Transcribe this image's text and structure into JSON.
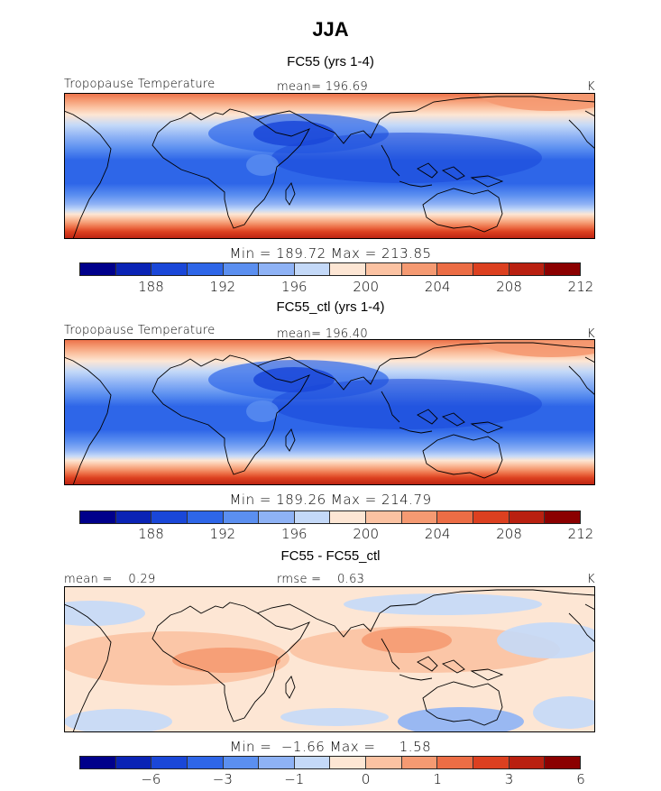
{
  "figure": {
    "title": "JJA"
  },
  "panels": [
    {
      "title": "FC55 (yrs 1-4)",
      "left_label": "Tropopause Temperature",
      "center_label": "mean= 196.69",
      "right_label": "K",
      "stats": "Min = 189.72 Max = 213.85"
    },
    {
      "title": "FC55_ctl (yrs 1-4)",
      "left_label": "Tropopause Temperature",
      "center_label": "mean= 196.40",
      "right_label": "K",
      "stats": "Min = 189.26 Max = 214.79"
    },
    {
      "title": "FC55 - FC55_ctl",
      "left_label": "mean =    0.29",
      "center_label": "rmse =    0.63",
      "right_label": "K",
      "stats": "Min =  −1.66 Max =     1.58"
    }
  ],
  "colorbars": [
    {
      "colors": [
        "#00008b",
        "#0a23b5",
        "#1a47d8",
        "#2e66e8",
        "#5b8ff0",
        "#8eb2f5",
        "#c4d9f8",
        "#fde6d4",
        "#fbc2a2",
        "#f59a72",
        "#ec6d45",
        "#dc4020",
        "#b92010",
        "#8b0000"
      ],
      "ticks": [
        "188",
        "192",
        "196",
        "200",
        "204",
        "208",
        "212"
      ]
    },
    {
      "colors": [
        "#00008b",
        "#0a23b5",
        "#1a47d8",
        "#2e66e8",
        "#5b8ff0",
        "#8eb2f5",
        "#c4d9f8",
        "#fde6d4",
        "#fbc2a2",
        "#f59a72",
        "#ec6d45",
        "#dc4020",
        "#b92010",
        "#8b0000"
      ],
      "ticks": [
        "188",
        "192",
        "196",
        "200",
        "204",
        "208",
        "212"
      ]
    },
    {
      "colors": [
        "#00008b",
        "#0a23b5",
        "#1a47d8",
        "#2e66e8",
        "#5b8ff0",
        "#8eb2f5",
        "#c4d9f8",
        "#fde6d4",
        "#fbc2a2",
        "#f59a72",
        "#ec6d45",
        "#dc4020",
        "#b92010",
        "#8b0000"
      ],
      "ticks": [
        "−6",
        "−3",
        "−1",
        "0",
        "1",
        "3",
        "6"
      ]
    }
  ],
  "chart_data": [
    {
      "type": "heatmap",
      "title": "FC55 (yrs 1-4)",
      "variable": "Tropopause Temperature",
      "units": "K",
      "season": "JJA",
      "mean": 196.69,
      "min": 189.72,
      "max": 213.85,
      "color_levels": [
        188,
        192,
        196,
        200,
        204,
        208,
        212
      ]
    },
    {
      "type": "heatmap",
      "title": "FC55_ctl (yrs 1-4)",
      "variable": "Tropopause Temperature",
      "units": "K",
      "season": "JJA",
      "mean": 196.4,
      "min": 189.26,
      "max": 214.79,
      "color_levels": [
        188,
        192,
        196,
        200,
        204,
        208,
        212
      ]
    },
    {
      "type": "heatmap",
      "title": "FC55 - FC55_ctl",
      "units": "K",
      "season": "JJA",
      "mean": 0.29,
      "rmse": 0.63,
      "min": -1.66,
      "max": 1.58,
      "color_levels": [
        -6,
        -3,
        -1,
        0,
        1,
        3,
        6
      ]
    }
  ]
}
